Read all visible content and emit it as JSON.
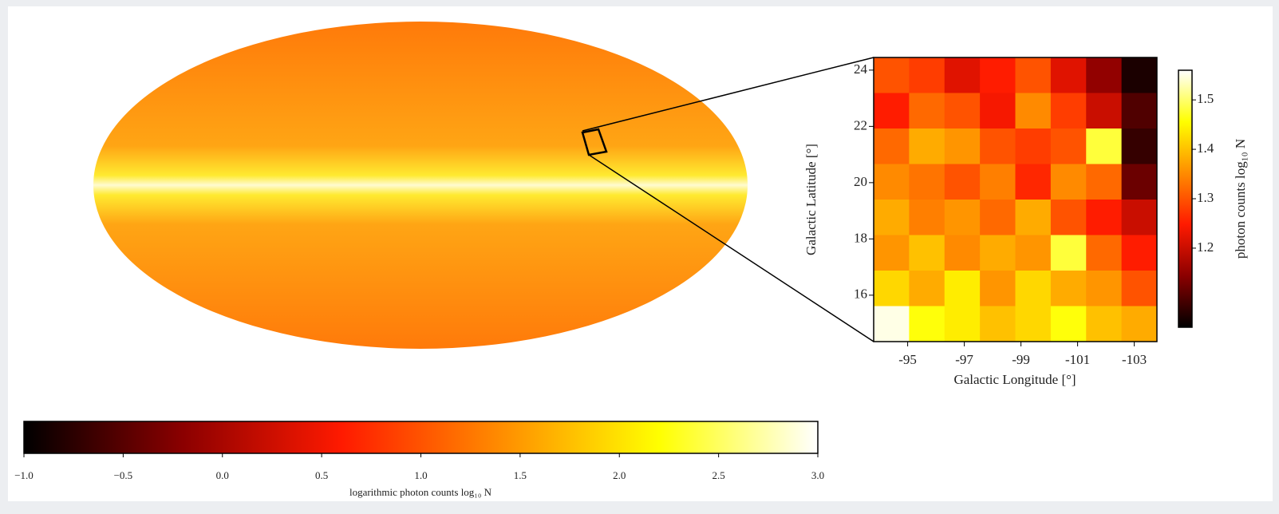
{
  "chart_data": [
    {
      "type": "map",
      "colormap": [
        "#000000",
        "#8b0000",
        "#ff1a00",
        "#ff8c00",
        "#ffff00",
        "#ffffff"
      ],
      "colorbar": {
        "label": "logarithmic photon counts log₁₀ N",
        "lim": [
          -1,
          3
        ],
        "ticks": [
          {
            "value": -1,
            "label": "−1.0"
          },
          {
            "value": -0.5,
            "label": "−0.5"
          },
          {
            "value": 0,
            "label": "0.0"
          },
          0.5,
          {
            "value": 1,
            "label": "1.0"
          },
          1.5,
          {
            "value": 2,
            "label": "2.0"
          },
          2.5,
          {
            "value": 3,
            "label": "3.0"
          }
        ]
      }
    },
    {
      "type": "heatmap",
      "xlabel": "Galactic Longitude [°]",
      "ylabel": "Galactic Latitude [°]",
      "xlim": [
        -93.8,
        -103.8
      ],
      "xticks": [
        -95,
        -97,
        -99,
        -101,
        -103
      ],
      "ylim": [
        14.35,
        24.45
      ],
      "yticks": [
        16,
        18,
        20,
        22,
        24
      ],
      "colormap": [
        "#000000",
        "#8b0000",
        "#ff1a00",
        "#ff8c00",
        "#ffff00",
        "#ffffff"
      ],
      "z": [
        [
          1.3,
          1.28,
          1.22,
          1.25,
          1.3,
          1.22,
          1.15,
          1.06
        ],
        [
          1.25,
          1.32,
          1.3,
          1.24,
          1.35,
          1.28,
          1.2,
          1.1
        ],
        [
          1.32,
          1.38,
          1.36,
          1.3,
          1.28,
          1.3,
          1.48,
          1.08
        ],
        [
          1.35,
          1.33,
          1.3,
          1.34,
          1.26,
          1.35,
          1.32,
          1.12
        ],
        [
          1.38,
          1.34,
          1.36,
          1.32,
          1.38,
          1.3,
          1.25,
          1.2
        ],
        [
          1.36,
          1.4,
          1.35,
          1.38,
          1.36,
          1.48,
          1.32,
          1.25
        ],
        [
          1.42,
          1.38,
          1.44,
          1.36,
          1.42,
          1.38,
          1.36,
          1.3
        ],
        [
          1.55,
          1.46,
          1.44,
          1.4,
          1.42,
          1.46,
          1.4,
          1.38
        ]
      ],
      "colorbar": {
        "label": "photon counts log₁₀ N",
        "lim": [
          1.04,
          1.56
        ],
        "ticks": [
          1.5,
          1.4,
          1.3,
          1.2
        ]
      }
    }
  ]
}
